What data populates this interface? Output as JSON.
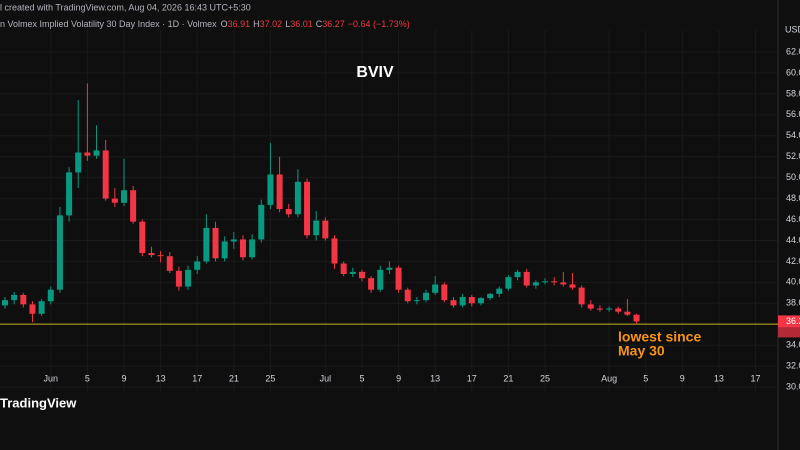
{
  "chart_data": {
    "type": "candlestick",
    "title": "BVIV",
    "header": "l created with TradingView.com, Aug 04, 2026 16:43 UTC+5:30",
    "legend": {
      "symbol": "n Volmex Implied Volatility 30 Day Index · 1D · Volmex",
      "items": [
        {
          "key": "O",
          "value": "36.91"
        },
        {
          "key": "H",
          "value": "37.02"
        },
        {
          "key": "L",
          "value": "36.01"
        },
        {
          "key": "C",
          "value": "36.27"
        }
      ],
      "change": "−0.64 (−1.73%)"
    },
    "currency": "USD",
    "logo": "TradingView",
    "annotation": [
      "lowest since",
      "May 30"
    ],
    "annotation_color": "#f7931a",
    "up_color": "#089981",
    "down_color": "#f23645",
    "grid": true,
    "hline": {
      "value": 36.01,
      "color": "#c9b520"
    },
    "x": [
      "May 27",
      "May 28",
      "May 29",
      "May 30",
      "May 31",
      "Jun 1",
      "Jun 2",
      "Jun 3",
      "Jun 4",
      "Jun 5",
      "Jun 6",
      "Jun 7",
      "Jun 8",
      "Jun 9",
      "Jun 10",
      "Jun 11",
      "Jun 12",
      "Jun 13",
      "Jun 14",
      "Jun 15",
      "Jun 16",
      "Jun 17",
      "Jun 18",
      "Jun 19",
      "Jun 20",
      "Jun 21",
      "Jun 22",
      "Jun 23",
      "Jun 24",
      "Jun 25",
      "Jun 26",
      "Jun 27",
      "Jun 28",
      "Jun 29",
      "Jun 30",
      "Jul 1",
      "Jul 2",
      "Jul 3",
      "Jul 4",
      "Jul 5",
      "Jul 6",
      "Jul 7",
      "Jul 8",
      "Jul 9",
      "Jul 10",
      "Jul 11",
      "Jul 12",
      "Jul 13",
      "Jul 14",
      "Jul 15",
      "Jul 16",
      "Jul 17",
      "Jul 18",
      "Jul 19",
      "Jul 20",
      "Jul 21",
      "Jul 22",
      "Jul 23",
      "Jul 24",
      "Jul 25",
      "Jul 26",
      "Jul 27",
      "Jul 28",
      "Jul 29",
      "Jul 30",
      "Jul 31",
      "Aug 1",
      "Aug 2",
      "Aug 3",
      "Aug 4"
    ],
    "open": [
      37.8,
      38.3,
      38.8,
      37.9,
      37.0,
      38.2,
      39.3,
      46.4,
      50.5,
      52.4,
      52.1,
      52.6,
      48.0,
      47.6,
      48.8,
      45.8,
      42.8,
      42.6,
      42.5,
      41.1,
      39.6,
      41.2,
      42.0,
      45.2,
      42.3,
      43.9,
      44.1,
      42.4,
      44.1,
      47.4,
      50.3,
      47.0,
      46.5,
      49.6,
      44.5,
      45.9,
      44.2,
      41.8,
      40.8,
      41.0,
      40.4,
      39.3,
      41.2,
      41.4,
      39.3,
      38.2,
      38.3,
      39.0,
      39.8,
      38.3,
      37.8,
      38.6,
      38.0,
      38.5,
      38.9,
      39.4,
      40.5,
      41.0,
      39.7,
      40.0,
      40.1,
      40.0,
      39.8,
      39.5,
      37.9,
      37.5,
      37.4,
      37.5,
      37.2,
      36.91
    ],
    "high": [
      38.6,
      39.1,
      39.0,
      38.2,
      38.4,
      39.6,
      47.2,
      51.0,
      57.4,
      59.0,
      55.0,
      53.6,
      49.0,
      51.8,
      49.2,
      46.0,
      43.4,
      43.0,
      42.9,
      41.5,
      41.6,
      42.5,
      46.5,
      45.8,
      44.4,
      44.8,
      44.5,
      44.6,
      47.9,
      53.3,
      52.0,
      47.5,
      50.8,
      49.9,
      46.8,
      46.2,
      44.5,
      42.0,
      41.4,
      41.2,
      40.6,
      41.6,
      42.0,
      41.6,
      39.5,
      38.6,
      39.3,
      40.6,
      40.0,
      38.6,
      38.9,
      38.8,
      38.6,
      39.0,
      39.6,
      40.7,
      41.2,
      41.3,
      40.2,
      40.4,
      40.5,
      41.0,
      40.9,
      39.7,
      38.3,
      37.8,
      37.7,
      37.7,
      38.4,
      37.02
    ],
    "low": [
      37.5,
      37.9,
      37.6,
      36.2,
      36.8,
      37.9,
      39.0,
      45.8,
      49.0,
      51.6,
      51.8,
      47.8,
      47.2,
      47.3,
      45.6,
      42.5,
      42.4,
      41.9,
      40.9,
      39.2,
      39.3,
      40.8,
      41.8,
      42.0,
      42.0,
      43.2,
      42.1,
      42.2,
      43.8,
      47.0,
      46.7,
      46.2,
      46.2,
      44.2,
      44.0,
      44.0,
      41.3,
      40.6,
      40.5,
      40.1,
      39.0,
      39.1,
      40.8,
      39.0,
      38.0,
      37.9,
      38.1,
      38.8,
      38.1,
      37.6,
      37.6,
      37.7,
      37.8,
      38.3,
      38.6,
      39.2,
      40.2,
      39.5,
      39.4,
      39.8,
      39.7,
      39.6,
      39.3,
      37.6,
      37.3,
      37.2,
      37.2,
      37.0,
      36.8,
      36.01
    ],
    "close": [
      38.3,
      38.8,
      37.9,
      37.0,
      38.2,
      39.3,
      46.4,
      50.5,
      52.4,
      52.1,
      52.6,
      48.0,
      47.6,
      48.8,
      45.8,
      42.8,
      42.6,
      42.5,
      41.1,
      39.6,
      41.2,
      42.0,
      45.2,
      42.3,
      43.9,
      44.1,
      42.4,
      44.1,
      47.4,
      50.3,
      47.0,
      46.5,
      49.6,
      44.5,
      45.9,
      44.2,
      41.8,
      40.8,
      41.0,
      40.4,
      39.3,
      41.2,
      41.4,
      39.3,
      38.2,
      38.3,
      39.0,
      39.8,
      38.3,
      37.8,
      38.6,
      38.0,
      38.5,
      38.9,
      39.4,
      40.5,
      41.0,
      39.7,
      40.0,
      40.1,
      40.0,
      39.8,
      39.5,
      37.9,
      37.5,
      37.4,
      37.5,
      37.2,
      36.91,
      36.27
    ],
    "xlim": [
      "May 27",
      "Aug 20"
    ],
    "xticks": [
      {
        "value": "Jun 1",
        "label": "Jun"
      },
      {
        "value": "Jun 5",
        "label": "5"
      },
      {
        "value": "Jun 9",
        "label": "9"
      },
      {
        "value": "Jun 13",
        "label": "13"
      },
      {
        "value": "Jun 17",
        "label": "17"
      },
      {
        "value": "Jun 21",
        "label": "21"
      },
      {
        "value": "Jun 25",
        "label": "25"
      },
      {
        "value": "Jul 1",
        "label": "Jul"
      },
      {
        "value": "Jul 5",
        "label": "5"
      },
      {
        "value": "Jul 9",
        "label": "9"
      },
      {
        "value": "Jul 13",
        "label": "13"
      },
      {
        "value": "Jul 17",
        "label": "17"
      },
      {
        "value": "Jul 21",
        "label": "21"
      },
      {
        "value": "Jul 25",
        "label": "25"
      },
      {
        "value": "Aug 1",
        "label": "Aug"
      },
      {
        "value": "Aug 5",
        "label": "5"
      },
      {
        "value": "Aug 9",
        "label": "9"
      },
      {
        "value": "Aug 13",
        "label": "13"
      },
      {
        "value": "Aug 17",
        "label": "17"
      }
    ],
    "ylim": [
      29.53,
      64.1
    ],
    "yticks": [
      {
        "value": 30,
        "label": "30.00"
      },
      {
        "value": 32,
        "label": "32.00"
      },
      {
        "value": 34,
        "label": "34.00"
      },
      {
        "value": 38,
        "label": "38.00"
      },
      {
        "value": 40,
        "label": "40.00"
      },
      {
        "value": 42,
        "label": "42.00"
      },
      {
        "value": 44,
        "label": "44.00"
      },
      {
        "value": 46,
        "label": "46.00"
      },
      {
        "value": 48,
        "label": "48.00"
      },
      {
        "value": 50,
        "label": "50.00"
      },
      {
        "value": 52,
        "label": "52.00"
      },
      {
        "value": 54,
        "label": "54.00"
      },
      {
        "value": 56,
        "label": "56.00"
      },
      {
        "value": 58,
        "label": "58.00"
      },
      {
        "value": 60,
        "label": "60.00"
      },
      {
        "value": 62,
        "label": "62.00"
      }
    ]
  }
}
